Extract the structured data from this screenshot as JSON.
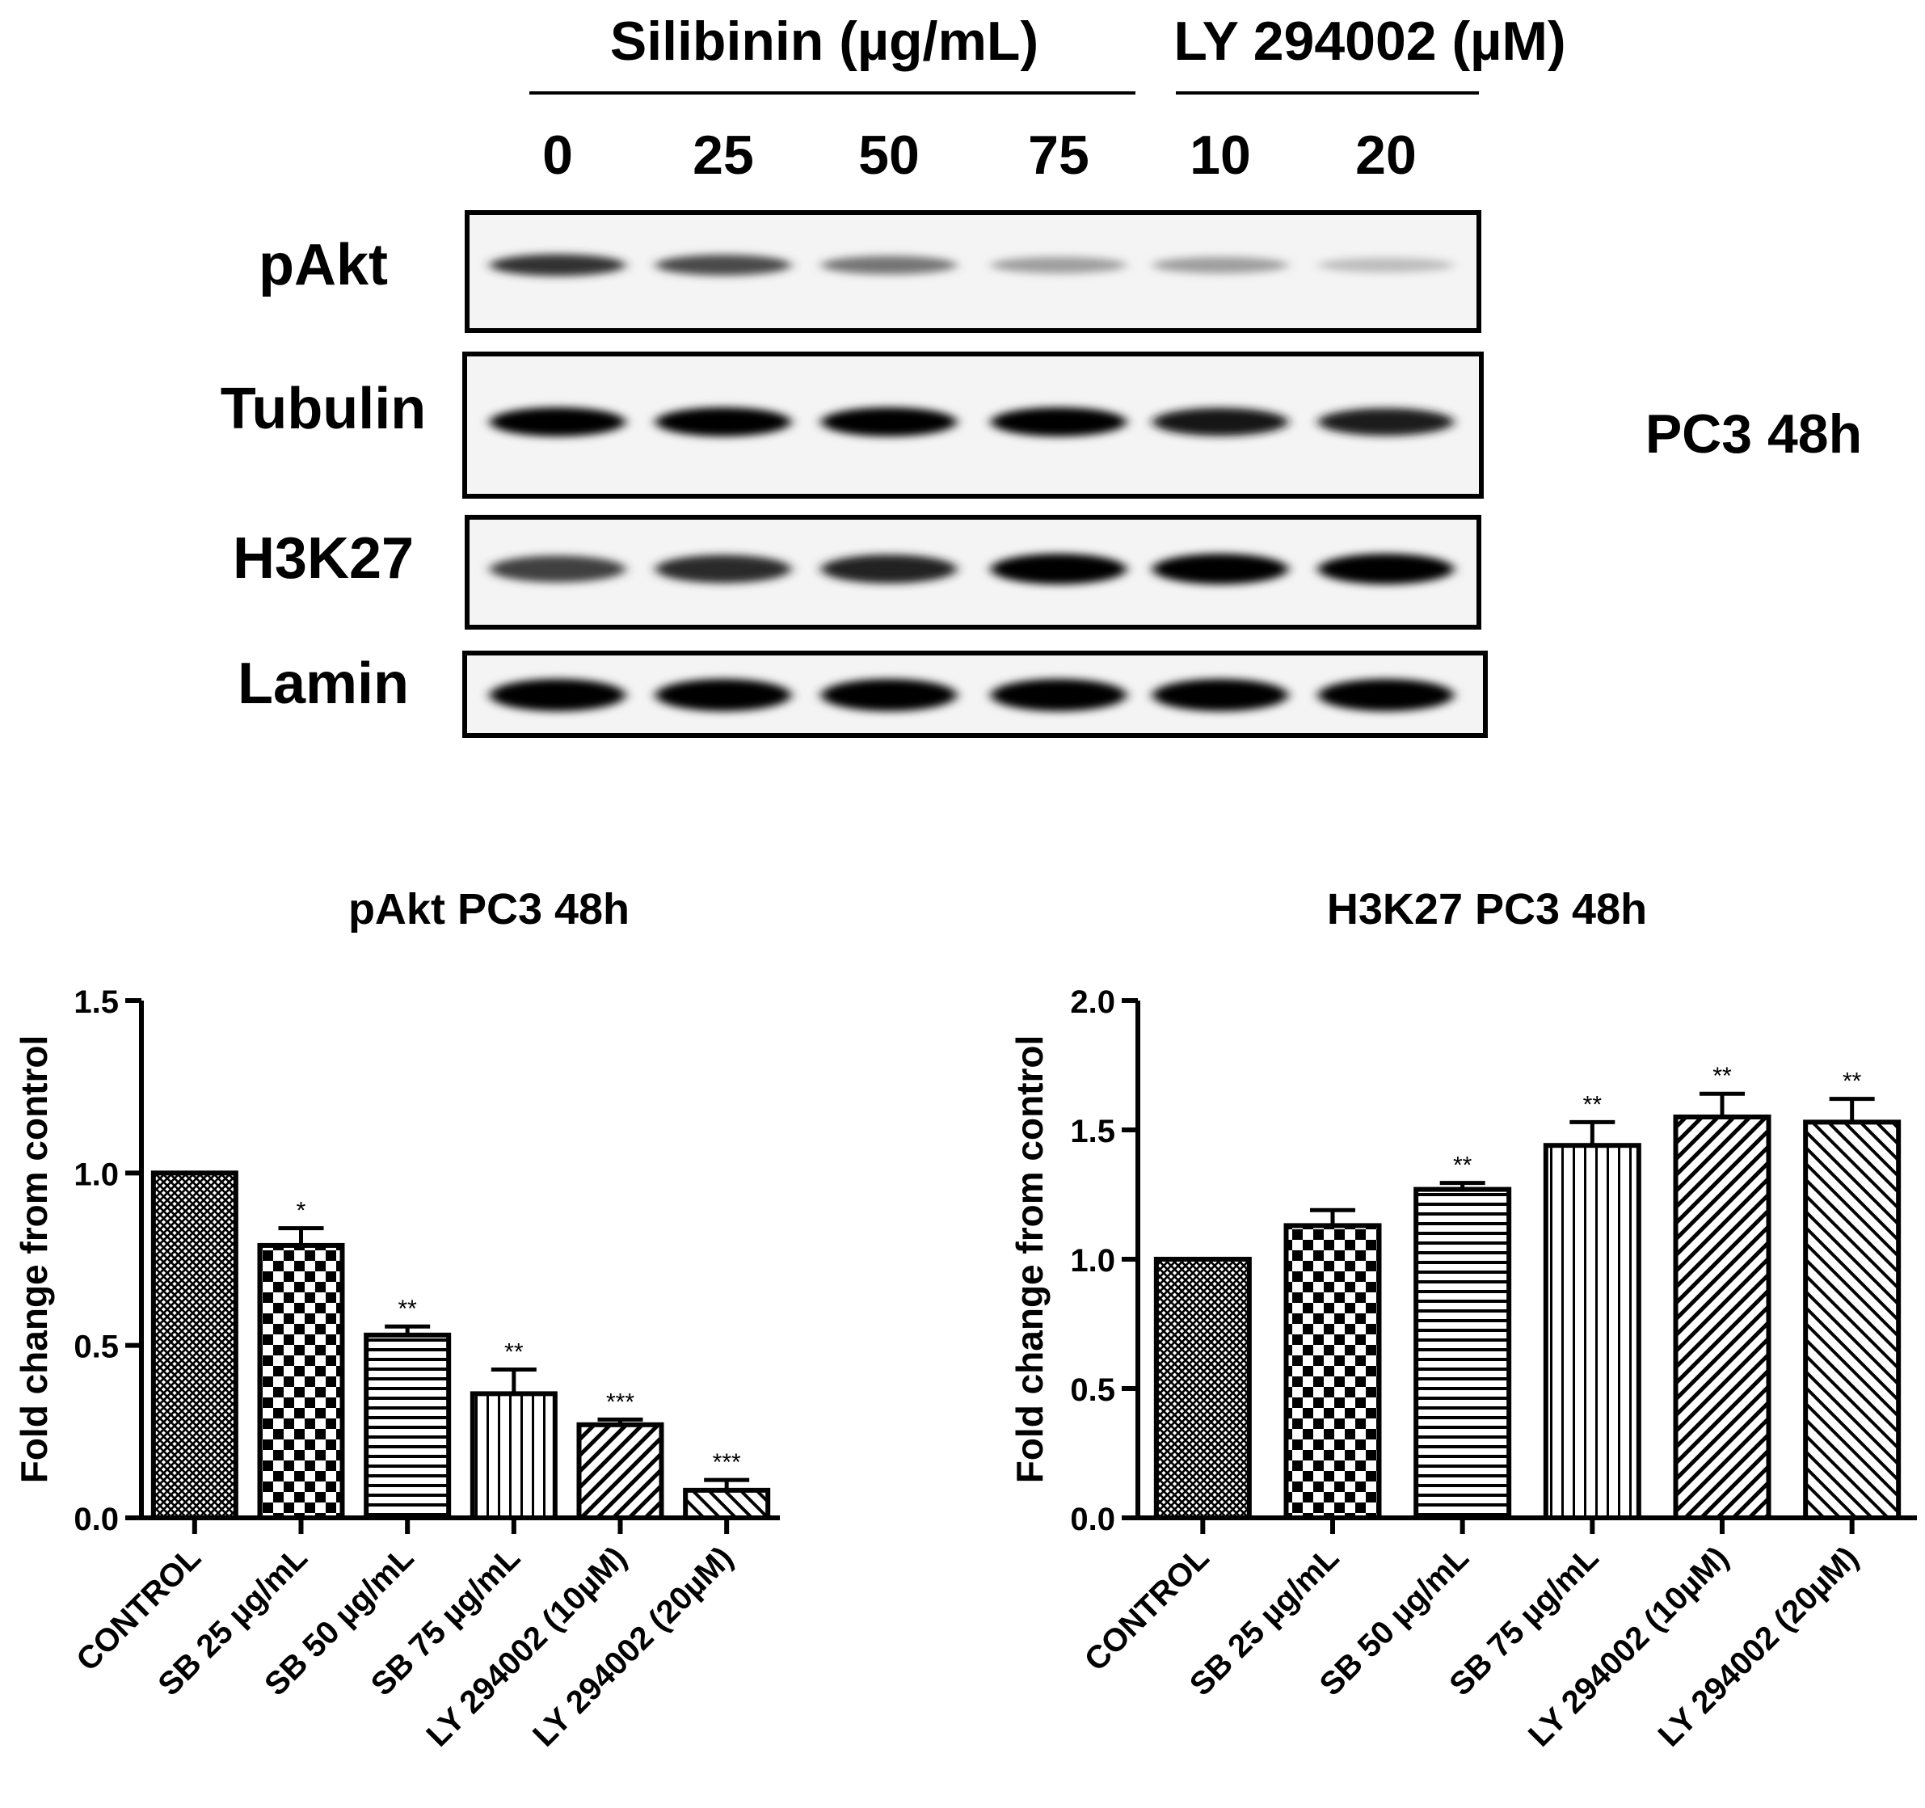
{
  "blot": {
    "group_headers": [
      {
        "label": "Silibinin (µg/mL)"
      },
      {
        "label": "LY 294002 (µM)"
      }
    ],
    "lane_labels": [
      "0",
      "25",
      "50",
      "75",
      "10",
      "20"
    ],
    "side_label": "PC3 48h",
    "rows": [
      {
        "label": "pAkt",
        "intensity": [
          0.78,
          0.68,
          0.48,
          0.3,
          0.3,
          0.16
        ]
      },
      {
        "label": "Tubulin",
        "intensity": [
          1.0,
          1.0,
          1.0,
          1.0,
          0.92,
          0.88
        ]
      },
      {
        "label": "H3K27",
        "intensity": [
          0.72,
          0.82,
          0.86,
          1.0,
          1.0,
          1.0
        ]
      },
      {
        "label": "Lamin",
        "intensity": [
          1.0,
          1.0,
          1.0,
          1.0,
          1.0,
          1.0
        ]
      }
    ]
  },
  "chart_data": [
    {
      "type": "bar",
      "title": "pAkt PC3 48h",
      "ylabel": "Fold change from control",
      "xlabel": "",
      "ylim": [
        0,
        1.5
      ],
      "yticks": [
        "0.0",
        "0.5",
        "1.0",
        "1.5"
      ],
      "categories": [
        "CONTROL",
        "SB 25 µg/mL",
        "SB 50 µg/mL",
        "SB 75 µg/mL",
        "LY 294002 (10µM)",
        "LY 294002 (20µM)"
      ],
      "values": [
        1.0,
        0.79,
        0.53,
        0.36,
        0.27,
        0.08
      ],
      "errors": [
        0,
        0.05,
        0.025,
        0.07,
        0.015,
        0.03
      ],
      "significance": [
        "",
        "*",
        "**",
        "**",
        "***",
        "***"
      ],
      "patterns": [
        "crosshatch",
        "checker",
        "hlines",
        "vlines",
        "diag-right",
        "diag-left"
      ]
    },
    {
      "type": "bar",
      "title": "H3K27 PC3 48h",
      "ylabel": "Fold change from control",
      "xlabel": "",
      "ylim": [
        0,
        2.0
      ],
      "yticks": [
        "0.0",
        "0.5",
        "1.0",
        "1.5",
        "2.0"
      ],
      "categories": [
        "CONTROL",
        "SB 25 µg/mL",
        "SB 50 µg/mL",
        "SB 75 µg/mL",
        "LY 294002 (10µM)",
        "LY 294002 (20µM)"
      ],
      "values": [
        1.0,
        1.13,
        1.27,
        1.44,
        1.55,
        1.53
      ],
      "errors": [
        0,
        0.06,
        0.025,
        0.09,
        0.09,
        0.09
      ],
      "significance": [
        "",
        "",
        "**",
        "**",
        "**",
        "**"
      ],
      "patterns": [
        "crosshatch",
        "checker",
        "hlines",
        "vlines",
        "diag-right",
        "diag-left"
      ]
    }
  ]
}
